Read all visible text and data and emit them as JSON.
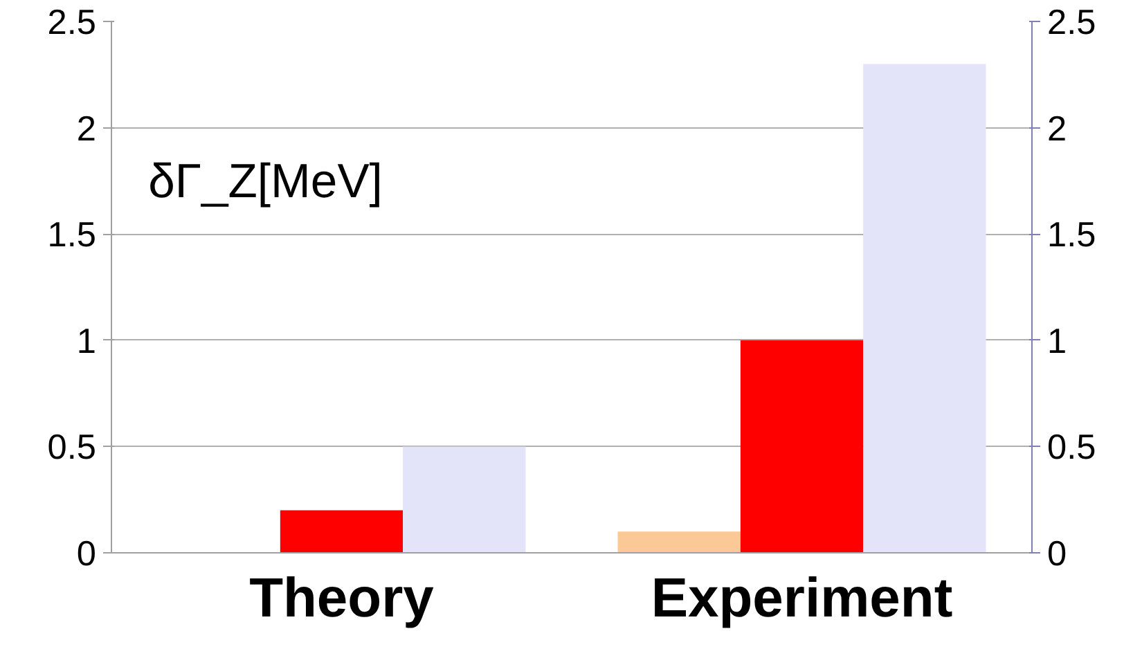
{
  "chart_data": {
    "type": "bar",
    "categories": [
      "Theory",
      "Experiment"
    ],
    "series": [
      {
        "color": "#fbc996",
        "values": [
          null,
          0.1
        ]
      },
      {
        "color": "#ff0000",
        "values": [
          0.2,
          1.0
        ]
      },
      {
        "color": "#e3e3fa",
        "values": [
          0.5,
          2.3
        ]
      }
    ],
    "ylim": [
      0,
      2.5
    ],
    "yticks": [
      0,
      0.5,
      1,
      1.5,
      2,
      2.5
    ],
    "y2lim": [
      0,
      2.5
    ],
    "y2ticks": [
      0,
      0.5,
      1,
      1.5,
      2,
      2.5
    ],
    "grid": "y",
    "annotations": [
      "δΓ_Z[MeV]"
    ]
  }
}
